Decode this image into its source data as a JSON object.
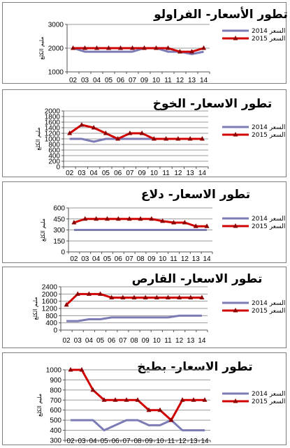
{
  "chart_data": [
    {
      "type": "line",
      "title": "تطور الأسعار- الفراولو",
      "ylabel": "مليم الكلغ",
      "categories": [
        "02",
        "03",
        "04",
        "05",
        "06",
        "07",
        "09",
        "10",
        "11",
        "12",
        "13",
        "14"
      ],
      "yticks": [
        "1000",
        "2000",
        "3000"
      ],
      "ylim": [
        1000,
        3000
      ],
      "series": [
        {
          "name": "السعر 2014",
          "values": [
            2000,
            1850,
            1850,
            1850,
            1850,
            1850,
            2000,
            2000,
            1850,
            1850,
            1750,
            1850
          ]
        },
        {
          "name": "السعر 2015",
          "values": [
            2000,
            2000,
            2000,
            2000,
            2000,
            2000,
            2000,
            2000,
            2000,
            1850,
            1850,
            2000
          ]
        }
      ]
    },
    {
      "type": "line",
      "title": "تطور الاسعار- الخوخ",
      "ylabel": "مليم الكلغ",
      "categories": [
        "02",
        "03",
        "04",
        "05",
        "06",
        "07",
        "09",
        "10",
        "11",
        "12",
        "13",
        "14"
      ],
      "yticks": [
        "0",
        "200",
        "400",
        "600",
        "800",
        "1000",
        "1200",
        "1400",
        "1600",
        "1800",
        "2000"
      ],
      "ylim": [
        0,
        2000
      ],
      "series": [
        {
          "name": "السعر 2014",
          "values": [
            1000,
            1000,
            900,
            1000,
            1000,
            1000,
            1000,
            1000,
            1000,
            1000,
            1000,
            1000
          ]
        },
        {
          "name": "السعر 2015",
          "values": [
            1200,
            1500,
            1400,
            1200,
            1000,
            1200,
            1200,
            1000,
            1000,
            1000,
            1000,
            1000
          ]
        }
      ]
    },
    {
      "type": "line",
      "title": "تطور الاسعار- دلاع",
      "ylabel": "مليم الكلغ",
      "categories": [
        "02",
        "03",
        "04",
        "05",
        "06",
        "07",
        "08",
        "09",
        "10",
        "11",
        "12",
        "13",
        "14"
      ],
      "yticks": [
        "0",
        "150",
        "300",
        "450",
        "600"
      ],
      "ylim": [
        0,
        600
      ],
      "series": [
        {
          "name": "السعر 2014",
          "values": [
            300,
            300,
            300,
            300,
            300,
            300,
            300,
            300,
            300,
            300,
            300,
            300,
            300
          ]
        },
        {
          "name": "السعر 2015",
          "values": [
            400,
            450,
            450,
            450,
            450,
            450,
            450,
            450,
            420,
            400,
            400,
            350,
            350
          ]
        }
      ]
    },
    {
      "type": "line",
      "title": "تطور الاسعار- القارص",
      "ylabel": "مليم الكلغ",
      "categories": [
        "02",
        "03",
        "04",
        "05",
        "06",
        "07",
        "08",
        "09",
        "10",
        "11",
        "12",
        "13",
        "14"
      ],
      "yticks": [
        "0",
        "400",
        "800",
        "1200",
        "1600",
        "2000",
        "2400"
      ],
      "ylim": [
        0,
        2400
      ],
      "series": [
        {
          "name": "السعر 2014",
          "values": [
            500,
            500,
            600,
            600,
            700,
            700,
            700,
            700,
            700,
            700,
            800,
            800,
            800
          ]
        },
        {
          "name": "السعر 2015",
          "values": [
            1400,
            2000,
            2000,
            2000,
            1800,
            1800,
            1800,
            1800,
            1800,
            1800,
            1800,
            1800,
            1800
          ]
        }
      ]
    },
    {
      "type": "line",
      "title": "تطور الاسعار- بطيخ",
      "ylabel": "مليم الكلغ",
      "categories": [
        "02",
        "03",
        "04",
        "05",
        "06",
        "07",
        "08",
        "09",
        "10",
        "11",
        "12",
        "13",
        "14"
      ],
      "yticks": [
        "300",
        "400",
        "500",
        "600",
        "700",
        "800",
        "900",
        "1000"
      ],
      "ylim": [
        300,
        1000
      ],
      "series": [
        {
          "name": "السعر 2014",
          "values": [
            500,
            500,
            500,
            400,
            450,
            500,
            500,
            450,
            450,
            500,
            400,
            400,
            400
          ]
        },
        {
          "name": "السعر 2015",
          "values": [
            1000,
            1000,
            800,
            700,
            700,
            700,
            700,
            600,
            600,
            500,
            700,
            700,
            700
          ]
        }
      ]
    }
  ],
  "colors": {
    "series_2014": "#7b7bb5",
    "series_2015": "#d00000",
    "marker_2015": "#8b0000",
    "grid": "#9a9a9a"
  }
}
